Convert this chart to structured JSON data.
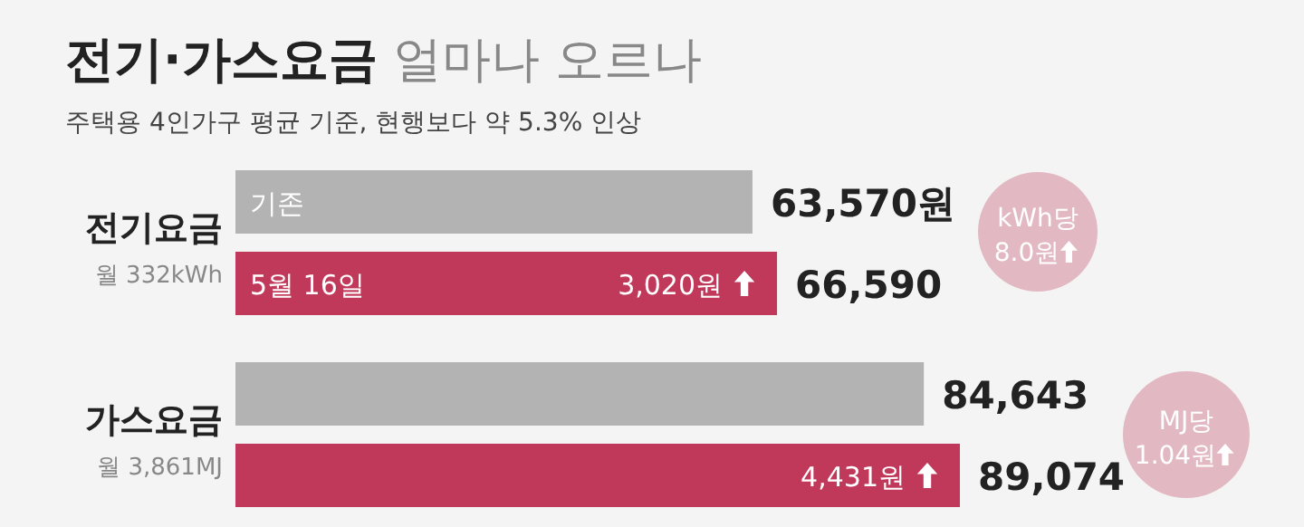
{
  "chart_data": {
    "type": "bar",
    "orientation": "horizontal",
    "title": "**전기·가스요금** 얼마나 오르나",
    "subtitle": "주택용 4인가구 평균 기준, 현행보다 약 5.3% 인상",
    "categories": [
      "전기요금",
      "가스요금"
    ],
    "series": [
      {
        "name": "기존",
        "color": "#b3b3b3",
        "values": [
          63570,
          84643
        ],
        "value_labels": [
          "63,570원",
          "84,643"
        ]
      },
      {
        "name": "5월 16일",
        "color": "#c0395a",
        "values": [
          66590,
          89074
        ],
        "value_labels": [
          "66,590",
          "89,074"
        ]
      }
    ],
    "annotations": [
      "월 332kWh",
      "월 3,861MJ",
      "3,020원",
      "4,431원",
      "kWh당 8.0원",
      "MJ당 1.04원"
    ]
  }
}
